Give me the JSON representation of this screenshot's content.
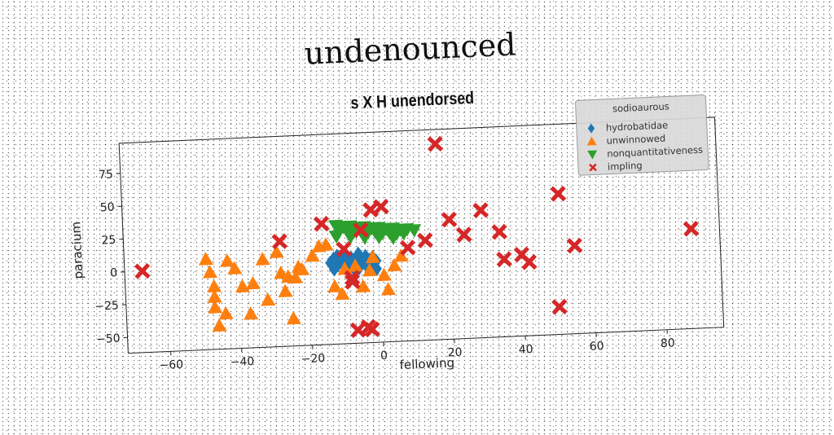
{
  "title": "undenounced",
  "chart_data": {
    "type": "scatter",
    "title": "s X H unendorsed",
    "xlabel": "fellowing",
    "ylabel": "paracium",
    "xlim": [
      -72,
      96
    ],
    "ylim": [
      -62,
      98
    ],
    "xticks": [
      -60,
      -40,
      -20,
      0,
      20,
      40,
      60,
      80
    ],
    "yticks": [
      -50,
      -25,
      0,
      25,
      50,
      75
    ],
    "grid": false,
    "legend": {
      "title": "sodioaurous",
      "position": "top-right",
      "entries": [
        "hydrobatidae",
        "unwinnowed",
        "nonquantitativeness",
        "impling"
      ]
    },
    "series": [
      {
        "name": "hydrobatidae",
        "marker": "diamond",
        "color": "#1f77b4",
        "points": [
          [
            -14,
            0
          ],
          [
            -13,
            3
          ],
          [
            -12,
            -2
          ],
          [
            -11,
            2
          ],
          [
            -10,
            -4
          ],
          [
            -10,
            4
          ],
          [
            -9,
            0
          ],
          [
            -8,
            -3
          ],
          [
            -8,
            3
          ],
          [
            -7,
            1
          ],
          [
            -6,
            -5
          ],
          [
            -6,
            4
          ],
          [
            -5,
            0
          ],
          [
            -4,
            -3
          ],
          [
            -4,
            4
          ],
          [
            -3,
            1
          ],
          [
            -2,
            -4
          ],
          [
            -2,
            3
          ],
          [
            -1,
            0
          ],
          [
            -12,
            5
          ],
          [
            -6,
            6
          ],
          [
            -13,
            -5
          ],
          [
            -7,
            -7
          ],
          [
            -1,
            -6
          ]
        ]
      },
      {
        "name": "unwinnowed",
        "marker": "triangle-up",
        "color": "#ff7f0e",
        "points": [
          [
            -49,
            7
          ],
          [
            -48,
            -3
          ],
          [
            -47,
            -14
          ],
          [
            -47,
            -22
          ],
          [
            -47,
            -30
          ],
          [
            -46,
            -44
          ],
          [
            -44,
            -35
          ],
          [
            -43,
            5
          ],
          [
            -41,
            -1
          ],
          [
            -39,
            -15
          ],
          [
            -37,
            -36
          ],
          [
            -36,
            -13
          ],
          [
            -33,
            5
          ],
          [
            -32,
            -26
          ],
          [
            -29,
            10
          ],
          [
            -28,
            -6
          ],
          [
            -27,
            -20
          ],
          [
            -26,
            -9
          ],
          [
            -25,
            -41
          ],
          [
            -24,
            -10
          ],
          [
            -23,
            -2
          ],
          [
            -22,
            -4
          ],
          [
            -19,
            6
          ],
          [
            -17,
            13
          ],
          [
            -15,
            14
          ],
          [
            -13,
            -18
          ],
          [
            -11,
            -24
          ],
          [
            -10,
            -5
          ],
          [
            -7,
            -3
          ],
          [
            -5,
            -19
          ],
          [
            -3,
            -7
          ],
          [
            -2,
            3
          ],
          [
            1,
            -11
          ],
          [
            4,
            -4
          ],
          [
            6,
            3
          ],
          [
            2,
            -22
          ]
        ]
      },
      {
        "name": "nonquantitativeness",
        "marker": "triangle-down",
        "color": "#2ca02c",
        "points": [
          [
            -12,
            28
          ],
          [
            -10,
            27
          ],
          [
            -8,
            27
          ],
          [
            -6,
            26
          ],
          [
            -4,
            26
          ],
          [
            -2,
            25
          ],
          [
            0,
            25
          ],
          [
            2,
            24
          ],
          [
            4,
            24
          ],
          [
            6,
            23
          ],
          [
            8,
            23
          ],
          [
            10,
            22
          ],
          [
            -11,
            24
          ],
          [
            -9,
            24
          ],
          [
            -7,
            23
          ],
          [
            -5,
            23
          ],
          [
            -3,
            22
          ],
          [
            -1,
            22
          ],
          [
            1,
            21
          ],
          [
            3,
            21
          ],
          [
            5,
            20
          ],
          [
            7,
            20
          ],
          [
            -12,
            20
          ],
          [
            -8,
            19
          ],
          [
            -4,
            18
          ],
          [
            0,
            18
          ],
          [
            4,
            17
          ]
        ]
      },
      {
        "name": "impling",
        "marker": "x",
        "color": "#d62728",
        "points": [
          [
            -67,
            0
          ],
          [
            -28,
            18
          ],
          [
            -16,
            30
          ],
          [
            -10,
            10
          ],
          [
            -8,
            -15
          ],
          [
            -8,
            -12
          ],
          [
            -5,
            24
          ],
          [
            -2,
            39
          ],
          [
            1,
            41
          ],
          [
            8,
            9
          ],
          [
            13,
            14
          ],
          [
            17,
            87
          ],
          [
            20,
            29
          ],
          [
            24,
            17
          ],
          [
            29,
            35
          ],
          [
            34,
            18
          ],
          [
            35,
            -3
          ],
          [
            40,
            0
          ],
          [
            42,
            -6
          ],
          [
            50,
            -41
          ],
          [
            51,
            45
          ],
          [
            55,
            5
          ],
          [
            88,
            14
          ],
          [
            -7,
            -52
          ],
          [
            -3,
            -52
          ],
          [
            -4,
            -50
          ]
        ]
      }
    ]
  }
}
